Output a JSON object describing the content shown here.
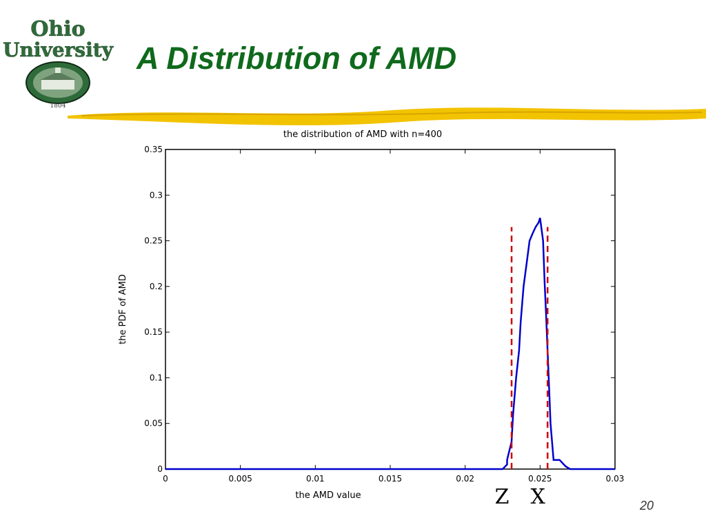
{
  "logo": {
    "line1": "Ohio",
    "line2": "University",
    "year": "1804"
  },
  "slide": {
    "title": "A Distribution of AMD",
    "page_number": "20"
  },
  "colors": {
    "title": "#0f6a1c",
    "accent_stroke": "#f2c300",
    "series": "#0000cc",
    "markers": "#cc0000"
  },
  "chart_data": {
    "type": "line",
    "title": "the distribution of AMD with n=400",
    "xlabel": "the AMD value",
    "ylabel": "the PDF of AMD",
    "xlim": [
      0,
      0.03
    ],
    "ylim": [
      0,
      0.35
    ],
    "xticks": [
      0,
      0.005,
      0.01,
      0.015,
      0.02,
      0.025,
      0.03
    ],
    "xtick_labels": [
      "0",
      "0.005",
      "0.01",
      "0.015",
      "0.02",
      "0.025",
      "0.03"
    ],
    "yticks": [
      0,
      0.05,
      0.1,
      0.15,
      0.2,
      0.25,
      0.3,
      0.35
    ],
    "ytick_labels": [
      "0",
      "0.05",
      "0.1",
      "0.15",
      "0.2",
      "0.25",
      "0.3",
      "0.35"
    ],
    "grid": false,
    "series": [
      {
        "x": [
          0,
          0.0225,
          0.0228,
          0.0228,
          0.0231,
          0.0232,
          0.0234,
          0.0236,
          0.0237,
          0.0239,
          0.0241,
          0.0243,
          0.0245,
          0.0247,
          0.0249,
          0.025,
          0.0252,
          0.0253,
          0.0254,
          0.0255,
          0.0256,
          0.0257,
          0.0258,
          0.0259,
          0.0261,
          0.0263,
          0.0267,
          0.027,
          0.03
        ],
        "y": [
          0,
          0,
          0.005,
          0.01,
          0.03,
          0.06,
          0.1,
          0.13,
          0.16,
          0.2,
          0.225,
          0.25,
          0.258,
          0.265,
          0.27,
          0.275,
          0.25,
          0.205,
          0.17,
          0.13,
          0.09,
          0.05,
          0.03,
          0.01,
          0.01,
          0.01,
          0.003,
          0,
          0
        ]
      }
    ],
    "markers": [
      {
        "x": 0.0231,
        "label": "Z",
        "style": "dashed"
      },
      {
        "x": 0.0255,
        "label": "X",
        "style": "dashed"
      }
    ]
  }
}
